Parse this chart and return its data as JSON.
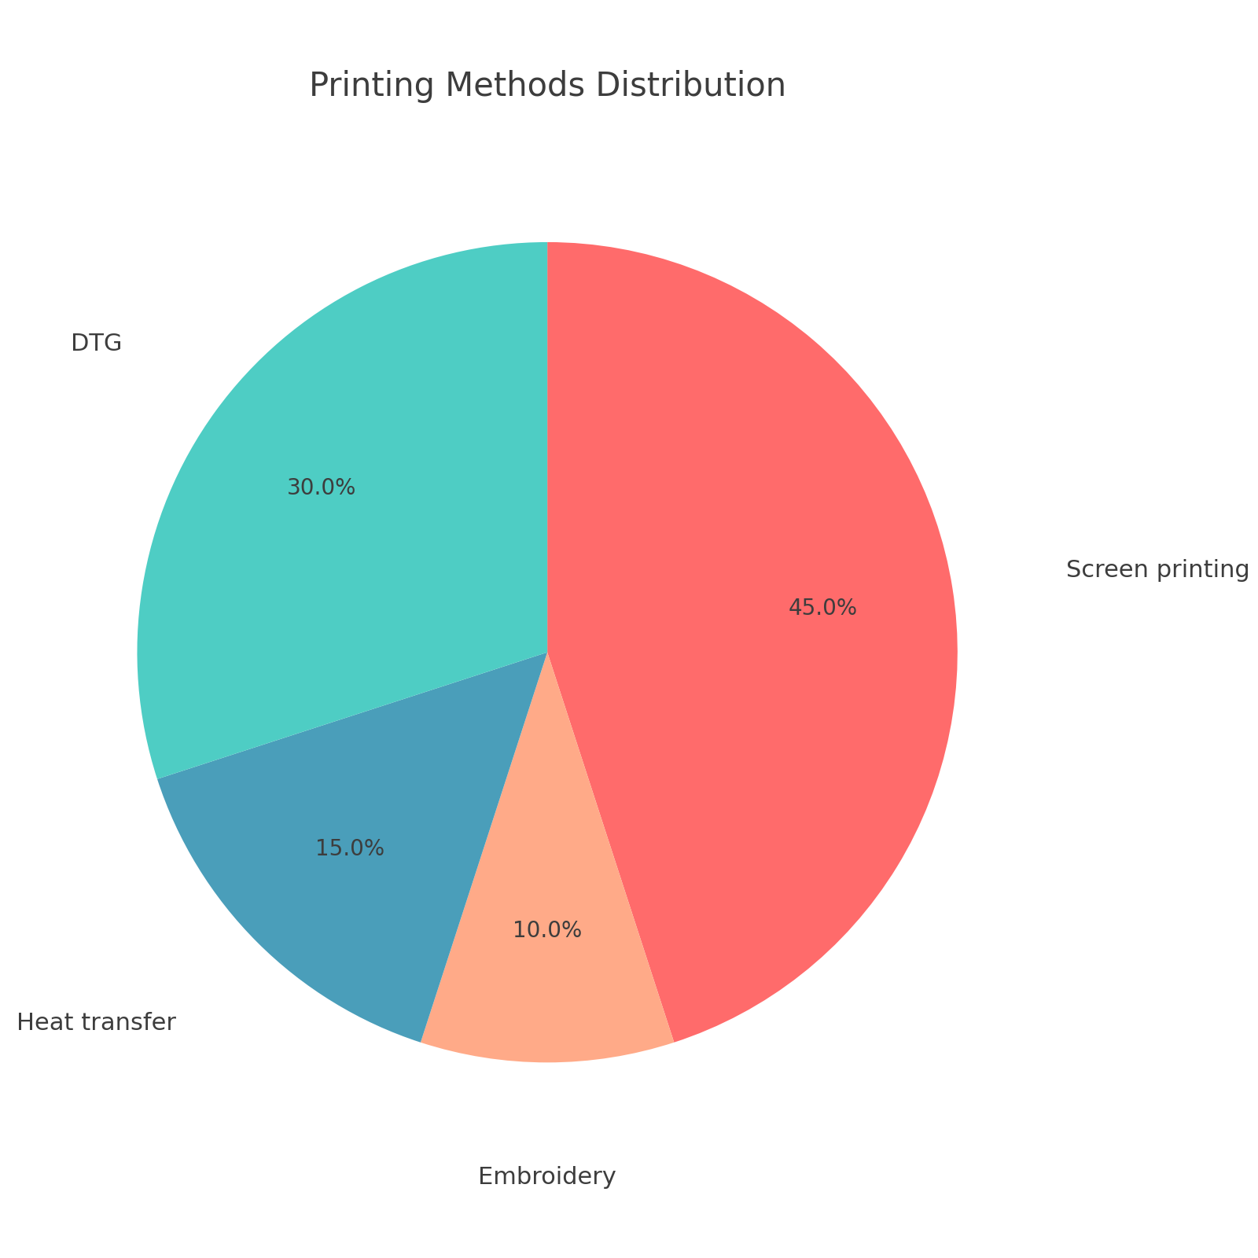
{
  "title": "Printing Methods Distribution",
  "title_fontsize": 30,
  "title_color": "#3d3d3d",
  "labels": [
    "Screen printing",
    "Embroidery",
    "Heat transfer",
    "DTG"
  ],
  "values": [
    45,
    10,
    15,
    30
  ],
  "colors": [
    "#FF6B6B",
    "#FFAA88",
    "#4A9EBA",
    "#4ECDC4"
  ],
  "label_fontsize": 22,
  "pct_fontsize": 20,
  "pct_color": "#3d3d3d",
  "label_color": "#3d3d3d",
  "startangle": 90,
  "background_color": "#ffffff",
  "pct_distance": 0.68
}
